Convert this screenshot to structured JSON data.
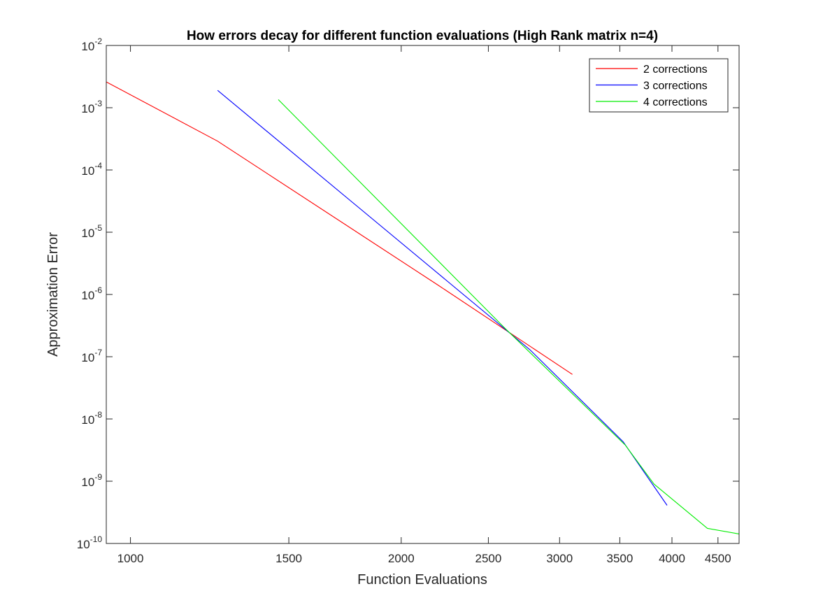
{
  "chart_data": {
    "type": "line",
    "title": "How errors decay for different function evaluations (High Rank matrix n=4)",
    "xlabel": "Function Evaluations",
    "ylabel": "Approximation Error",
    "xscale": "log",
    "yscale": "log",
    "xlim": [
      940,
      4750
    ],
    "ylim": [
      1e-10,
      0.01
    ],
    "grid": false,
    "legend_position": "top-right",
    "xticks": [
      1000,
      1500,
      2000,
      2500,
      3000,
      3500,
      4000,
      4500
    ],
    "xtick_labels": [
      "1000",
      "1500",
      "2000",
      "2500",
      "3000",
      "3500",
      "4000",
      "4500"
    ],
    "yticks": [
      {
        "value": 1e-10,
        "base": "10",
        "exp": "-10"
      },
      {
        "value": 1e-09,
        "base": "10",
        "exp": "-9"
      },
      {
        "value": 1e-08,
        "base": "10",
        "exp": "-8"
      },
      {
        "value": 1e-07,
        "base": "10",
        "exp": "-7"
      },
      {
        "value": 1e-06,
        "base": "10",
        "exp": "-6"
      },
      {
        "value": 1e-05,
        "base": "10",
        "exp": "-5"
      },
      {
        "value": 0.0001,
        "base": "10",
        "exp": "-4"
      },
      {
        "value": 0.001,
        "base": "10",
        "exp": "-3"
      },
      {
        "value": 0.01,
        "base": "10",
        "exp": "-2"
      }
    ],
    "series": [
      {
        "name": "2 corrections",
        "color": "#ff0000",
        "x": [
          940,
          1250,
          2200,
          3100
        ],
        "y": [
          0.0026,
          0.00029,
          1.4e-06,
          5.2e-08
        ]
      },
      {
        "name": "3 corrections",
        "color": "#0000ff",
        "x": [
          1250,
          2780,
          3530,
          3950
        ],
        "y": [
          0.0019,
          1.3e-07,
          4.3e-09,
          4.1e-10
        ]
      },
      {
        "name": "4 corrections",
        "color": "#00ee00",
        "x": [
          1460,
          2600,
          3550,
          3820,
          4380,
          4750
        ],
        "y": [
          0.00135,
          3e-07,
          3.8e-09,
          9e-10,
          1.75e-10,
          1.42e-10
        ]
      }
    ]
  }
}
